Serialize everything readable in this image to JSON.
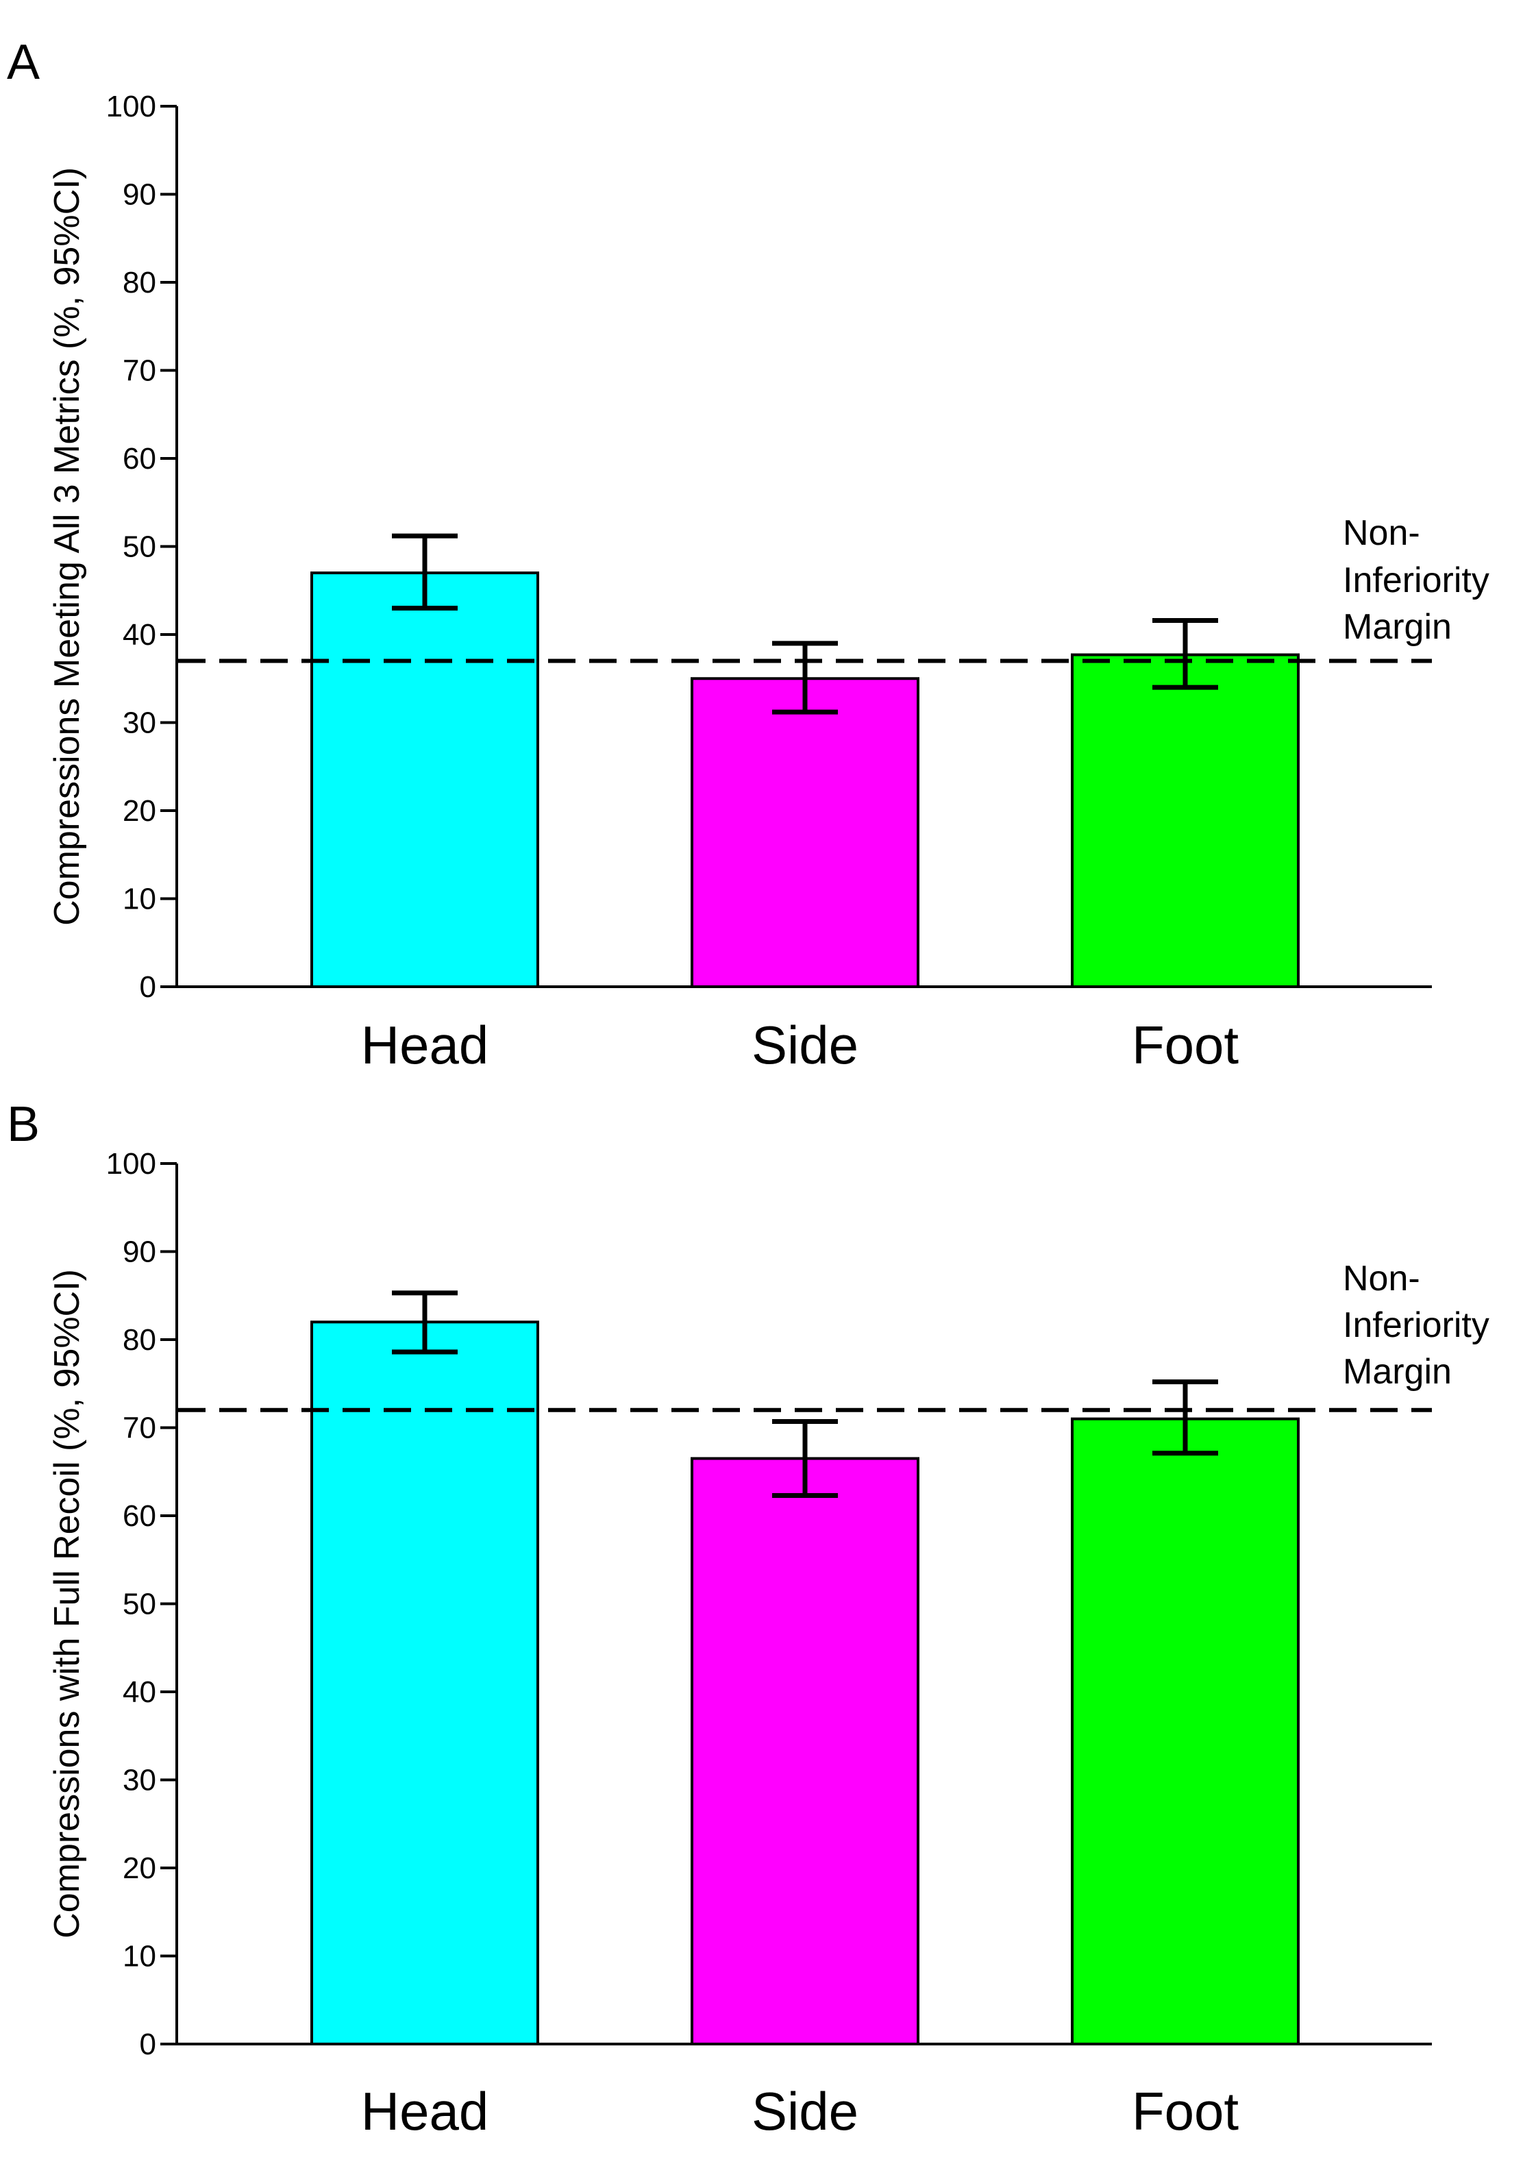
{
  "chart_data": [
    {
      "panel": "A",
      "type": "bar",
      "categories": [
        "Head",
        "Side",
        "Foot"
      ],
      "values": [
        47,
        35,
        37.7
      ],
      "ci_lower": [
        43,
        31.2,
        34
      ],
      "ci_upper": [
        51.2,
        39,
        41.6
      ],
      "colors": [
        "#00ffff",
        "#ff00ff",
        "#00ff00"
      ],
      "ylabel": "Compressions Meeting All 3 Metrics (%, 95%CI)",
      "ylim": [
        0,
        100
      ],
      "yticks": [
        "0",
        "10",
        "20",
        "30",
        "40",
        "50",
        "60",
        "70",
        "80",
        "90",
        "100"
      ],
      "reference_line": {
        "value": 37,
        "style": "dashed",
        "label_lines": [
          "Non-",
          "Inferiority",
          "Margin"
        ]
      }
    },
    {
      "panel": "B",
      "type": "bar",
      "categories": [
        "Head",
        "Side",
        "Foot"
      ],
      "values": [
        82,
        66.5,
        71
      ],
      "ci_lower": [
        78.6,
        62.3,
        67.1
      ],
      "ci_upper": [
        85.3,
        70.7,
        75.2
      ],
      "colors": [
        "#00ffff",
        "#ff00ff",
        "#00ff00"
      ],
      "ylabel": "Compressions with Full Recoil (%, 95%CI)",
      "ylim": [
        0,
        100
      ],
      "yticks": [
        "0",
        "10",
        "20",
        "30",
        "40",
        "50",
        "60",
        "70",
        "80",
        "90",
        "100"
      ],
      "reference_line": {
        "value": 72,
        "style": "dashed",
        "label_lines": [
          "Non-",
          "Inferiority",
          "Margin"
        ]
      }
    }
  ]
}
